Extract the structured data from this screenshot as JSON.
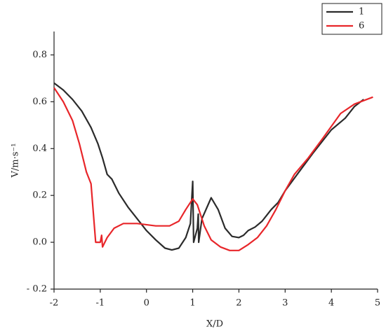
{
  "chart_data": {
    "type": "line",
    "xlabel": "X/D",
    "ylabel": "V/m·s⁻¹",
    "xlim": [
      -2,
      5
    ],
    "ylim": [
      -0.2,
      0.9
    ],
    "xticks": [
      -2,
      -1,
      0,
      1,
      2,
      3,
      4,
      5
    ],
    "yticks": [
      {
        "value": -0.2,
        "label": "- 0.2"
      },
      {
        "value": 0,
        "label": "0.0"
      },
      0.2,
      0.4,
      0.6,
      0.8
    ],
    "grid": false,
    "legend": "upper right",
    "series": [
      {
        "name": "1",
        "color": "#2b2b2b",
        "x": [
          -2,
          -1.8,
          -1.6,
          -1.4,
          -1.2,
          -1.05,
          -0.95,
          -0.85,
          -0.75,
          -0.6,
          -0.4,
          -0.2,
          0,
          0.2,
          0.4,
          0.55,
          0.7,
          0.85,
          0.95,
          1.0,
          1.02,
          1.1,
          1.12,
          1.13,
          1.2,
          1.4,
          1.55,
          1.7,
          1.85,
          2.0,
          2.1,
          2.2,
          2.35,
          2.5,
          2.7,
          2.85,
          3.0,
          3.3,
          3.6,
          4.0,
          4.3,
          4.5,
          4.7
        ],
        "values": [
          0.68,
          0.65,
          0.61,
          0.56,
          0.49,
          0.42,
          0.36,
          0.29,
          0.27,
          0.21,
          0.15,
          0.1,
          0.05,
          0.01,
          -0.025,
          -0.033,
          -0.025,
          0.02,
          0.08,
          0.26,
          0.0,
          0.06,
          0.12,
          0.0,
          0.1,
          0.19,
          0.14,
          0.06,
          0.025,
          0.02,
          0.03,
          0.05,
          0.065,
          0.09,
          0.14,
          0.17,
          0.22,
          0.3,
          0.38,
          0.48,
          0.53,
          0.58,
          0.61
        ]
      },
      {
        "name": "6",
        "color": "#e8262a",
        "x": [
          -2,
          -1.8,
          -1.6,
          -1.45,
          -1.3,
          -1.2,
          -1.1,
          -1.0,
          -0.97,
          -0.95,
          -0.85,
          -0.7,
          -0.5,
          -0.2,
          0.2,
          0.5,
          0.7,
          0.85,
          1.0,
          1.1,
          1.25,
          1.4,
          1.6,
          1.8,
          2.0,
          2.2,
          2.4,
          2.6,
          2.8,
          3.0,
          3.2,
          3.5,
          3.8,
          4.2,
          4.5,
          4.9
        ],
        "values": [
          0.66,
          0.6,
          0.52,
          0.42,
          0.3,
          0.25,
          0.0,
          0.0,
          0.03,
          -0.02,
          0.02,
          0.06,
          0.08,
          0.08,
          0.07,
          0.07,
          0.09,
          0.14,
          0.185,
          0.16,
          0.07,
          0.01,
          -0.02,
          -0.035,
          -0.035,
          -0.01,
          0.02,
          0.07,
          0.14,
          0.22,
          0.29,
          0.36,
          0.44,
          0.55,
          0.59,
          0.62
        ]
      }
    ]
  }
}
